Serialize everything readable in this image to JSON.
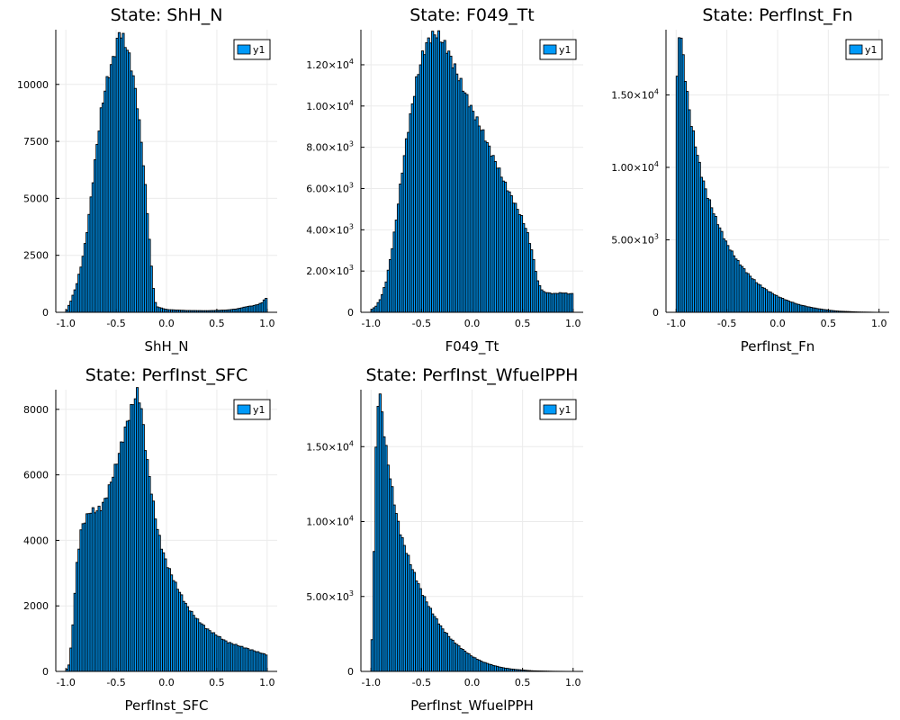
{
  "figure": {
    "layout": "2x3 grid of histograms, last cell empty",
    "bar_color": "#009AF9",
    "edge_color": "#000000"
  },
  "chart_data": [
    {
      "type": "bar",
      "title": "State: ShH_N",
      "xlabel": "ShH_N",
      "ylabel": "",
      "xlim": [
        -1.1,
        1.1
      ],
      "ylim": [
        0,
        12400
      ],
      "x_ticks": [
        -1.0,
        -0.5,
        0.0,
        0.5,
        1.0
      ],
      "x_tick_labels": [
        "-1.0",
        "-0.5",
        "0.0",
        "0.5",
        "1.0"
      ],
      "y_ticks": [
        0,
        2500,
        5000,
        7500,
        10000
      ],
      "y_tick_labels": [
        "0",
        "2500",
        "5000",
        "7500",
        "10000"
      ],
      "legend": {
        "label": "y1",
        "position": "top-right"
      },
      "grid": true,
      "bin_range": [
        -1.0,
        1.0
      ],
      "profile": {
        "x": [
          -1.0,
          -0.98,
          -0.95,
          -0.9,
          -0.85,
          -0.8,
          -0.75,
          -0.7,
          -0.65,
          -0.6,
          -0.55,
          -0.5,
          -0.47,
          -0.45,
          -0.42,
          -0.38,
          -0.35,
          -0.3,
          -0.25,
          -0.2,
          -0.15,
          -0.12,
          -0.1,
          0.0,
          0.2,
          0.4,
          0.6,
          0.7,
          0.8,
          0.85,
          0.9,
          0.95,
          0.97,
          0.99,
          1.0
        ],
        "y": [
          0,
          200,
          500,
          1100,
          2000,
          3200,
          5000,
          7000,
          8800,
          10000,
          10800,
          11600,
          12300,
          12200,
          11900,
          11400,
          10800,
          9500,
          7500,
          5000,
          2000,
          600,
          250,
          120,
          80,
          70,
          100,
          150,
          250,
          280,
          330,
          420,
          550,
          600,
          0
        ]
      }
    },
    {
      "type": "bar",
      "title": "State: F049_Tt",
      "xlabel": "F049_Tt",
      "ylabel": "",
      "xlim": [
        -1.1,
        1.1
      ],
      "ylim": [
        0,
        13700
      ],
      "x_ticks": [
        -1.0,
        -0.5,
        0.0,
        0.5,
        1.0
      ],
      "x_tick_labels": [
        "-1.0",
        "-0.5",
        "0.0",
        "0.5",
        "1.0"
      ],
      "y_ticks": [
        0,
        2000,
        4000,
        6000,
        8000,
        10000,
        12000
      ],
      "y_tick_labels": [
        [
          "0"
        ],
        [
          "2.00",
          "×10",
          "3"
        ],
        [
          "4.00",
          "×10",
          "3"
        ],
        [
          "6.00",
          "×10",
          "3"
        ],
        [
          "8.00",
          "×10",
          "3"
        ],
        [
          "1.00",
          "×10",
          "4"
        ],
        [
          "1.20",
          "×10",
          "4"
        ]
      ],
      "legend": {
        "label": "y1",
        "position": "top-right"
      },
      "grid": true,
      "bin_range": [
        -1.0,
        1.0
      ],
      "profile": {
        "x": [
          -1.0,
          -0.95,
          -0.9,
          -0.85,
          -0.8,
          -0.75,
          -0.7,
          -0.65,
          -0.6,
          -0.55,
          -0.5,
          -0.45,
          -0.4,
          -0.35,
          -0.3,
          -0.25,
          -0.2,
          -0.15,
          -0.1,
          -0.05,
          0.0,
          0.05,
          0.1,
          0.15,
          0.2,
          0.25,
          0.3,
          0.35,
          0.4,
          0.45,
          0.5,
          0.55,
          0.6,
          0.65,
          0.7,
          0.8,
          0.9,
          0.95,
          1.0
        ],
        "y": [
          100,
          300,
          700,
          1500,
          2800,
          4500,
          6500,
          8300,
          9800,
          11200,
          12300,
          13000,
          13400,
          13500,
          13200,
          12800,
          12200,
          11600,
          11000,
          10400,
          9800,
          9300,
          8800,
          8200,
          7600,
          7100,
          6500,
          6000,
          5500,
          5000,
          4500,
          3800,
          2800,
          1500,
          1000,
          900,
          950,
          900,
          900
        ]
      }
    },
    {
      "type": "bar",
      "title": "State: PerfInst_Fn",
      "xlabel": "PerfInst_Fn",
      "ylabel": "",
      "xlim": [
        -1.1,
        1.1
      ],
      "ylim": [
        0,
        19500
      ],
      "x_ticks": [
        -1.0,
        -0.5,
        0.0,
        0.5,
        1.0
      ],
      "x_tick_labels": [
        "-1.0",
        "-0.5",
        "0.0",
        "0.5",
        "1.0"
      ],
      "y_ticks": [
        0,
        5000,
        10000,
        15000
      ],
      "y_tick_labels": [
        [
          "0"
        ],
        [
          "5.00",
          "×10",
          "3"
        ],
        [
          "1.00",
          "×10",
          "4"
        ],
        [
          "1.50",
          "×10",
          "4"
        ]
      ],
      "legend": {
        "label": "y1",
        "position": "top-right"
      },
      "grid": true,
      "bin_range": [
        -1.0,
        1.0
      ],
      "profile": {
        "x": [
          -1.0,
          -0.99,
          -0.97,
          -0.95,
          -0.92,
          -0.9,
          -0.85,
          -0.8,
          -0.75,
          -0.7,
          -0.6,
          -0.5,
          -0.4,
          -0.3,
          -0.2,
          -0.1,
          0.0,
          0.1,
          0.2,
          0.3,
          0.4,
          0.5,
          0.6,
          0.8,
          1.0
        ],
        "y": [
          2500,
          16000,
          19300,
          18800,
          17000,
          15500,
          13000,
          11200,
          9500,
          8200,
          6300,
          4700,
          3600,
          2700,
          2000,
          1500,
          1100,
          800,
          550,
          380,
          250,
          150,
          80,
          20,
          0
        ]
      }
    },
    {
      "type": "bar",
      "title": "State: PerfInst_SFC",
      "xlabel": "PerfInst_SFC",
      "ylabel": "",
      "xlim": [
        -1.1,
        1.1
      ],
      "ylim": [
        0,
        8600
      ],
      "x_ticks": [
        -1.0,
        -0.5,
        0.0,
        0.5,
        1.0
      ],
      "x_tick_labels": [
        "-1.0",
        "-0.5",
        "0.0",
        "0.5",
        "1.0"
      ],
      "y_ticks": [
        0,
        2000,
        4000,
        6000,
        8000
      ],
      "y_tick_labels": [
        "0",
        "2000",
        "4000",
        "6000",
        "8000"
      ],
      "legend": {
        "label": "y1",
        "position": "top-right"
      },
      "grid": true,
      "bin_range": [
        -1.0,
        1.0
      ],
      "profile": {
        "x": [
          -1.0,
          -0.97,
          -0.95,
          -0.92,
          -0.9,
          -0.87,
          -0.85,
          -0.8,
          -0.75,
          -0.7,
          -0.65,
          -0.6,
          -0.55,
          -0.5,
          -0.45,
          -0.4,
          -0.35,
          -0.3,
          -0.28,
          -0.25,
          -0.2,
          -0.15,
          -0.1,
          -0.05,
          0.0,
          0.1,
          0.2,
          0.3,
          0.4,
          0.5,
          0.6,
          0.7,
          0.8,
          0.9,
          1.0
        ],
        "y": [
          0,
          200,
          700,
          1800,
          3000,
          3800,
          4300,
          4700,
          4900,
          4900,
          5000,
          5300,
          5800,
          6300,
          6900,
          7500,
          8000,
          8500,
          8500,
          8000,
          6600,
          5500,
          4500,
          3800,
          3300,
          2600,
          2000,
          1600,
          1300,
          1100,
          900,
          800,
          700,
          600,
          500
        ]
      }
    },
    {
      "type": "bar",
      "title": "State: PerfInst_WfuelPPH",
      "xlabel": "PerfInst_WfuelPPH",
      "ylabel": "",
      "xlim": [
        -1.1,
        1.1
      ],
      "ylim": [
        0,
        18800
      ],
      "x_ticks": [
        -1.0,
        -0.5,
        0.0,
        0.5,
        1.0
      ],
      "x_tick_labels": [
        "-1.0",
        "-0.5",
        "0.0",
        "0.5",
        "1.0"
      ],
      "y_ticks": [
        0,
        5000,
        10000,
        15000
      ],
      "y_tick_labels": [
        [
          "0"
        ],
        [
          "5.00",
          "×10",
          "3"
        ],
        [
          "1.00",
          "×10",
          "4"
        ],
        [
          "1.50",
          "×10",
          "4"
        ]
      ],
      "legend": {
        "label": "y1",
        "position": "top-right"
      },
      "grid": true,
      "bin_range": [
        -1.0,
        1.0
      ],
      "profile": {
        "x": [
          -1.0,
          -0.98,
          -0.96,
          -0.94,
          -0.92,
          -0.9,
          -0.88,
          -0.85,
          -0.8,
          -0.75,
          -0.7,
          -0.6,
          -0.5,
          -0.4,
          -0.3,
          -0.2,
          -0.1,
          0.0,
          0.1,
          0.2,
          0.3,
          0.4,
          0.5,
          0.6,
          0.8,
          1.0
        ],
        "y": [
          300,
          4000,
          12000,
          17500,
          18600,
          18000,
          16500,
          14800,
          12500,
          10500,
          9000,
          7000,
          5300,
          4000,
          2900,
          2100,
          1500,
          1000,
          650,
          420,
          250,
          150,
          90,
          40,
          10,
          0
        ]
      }
    }
  ]
}
